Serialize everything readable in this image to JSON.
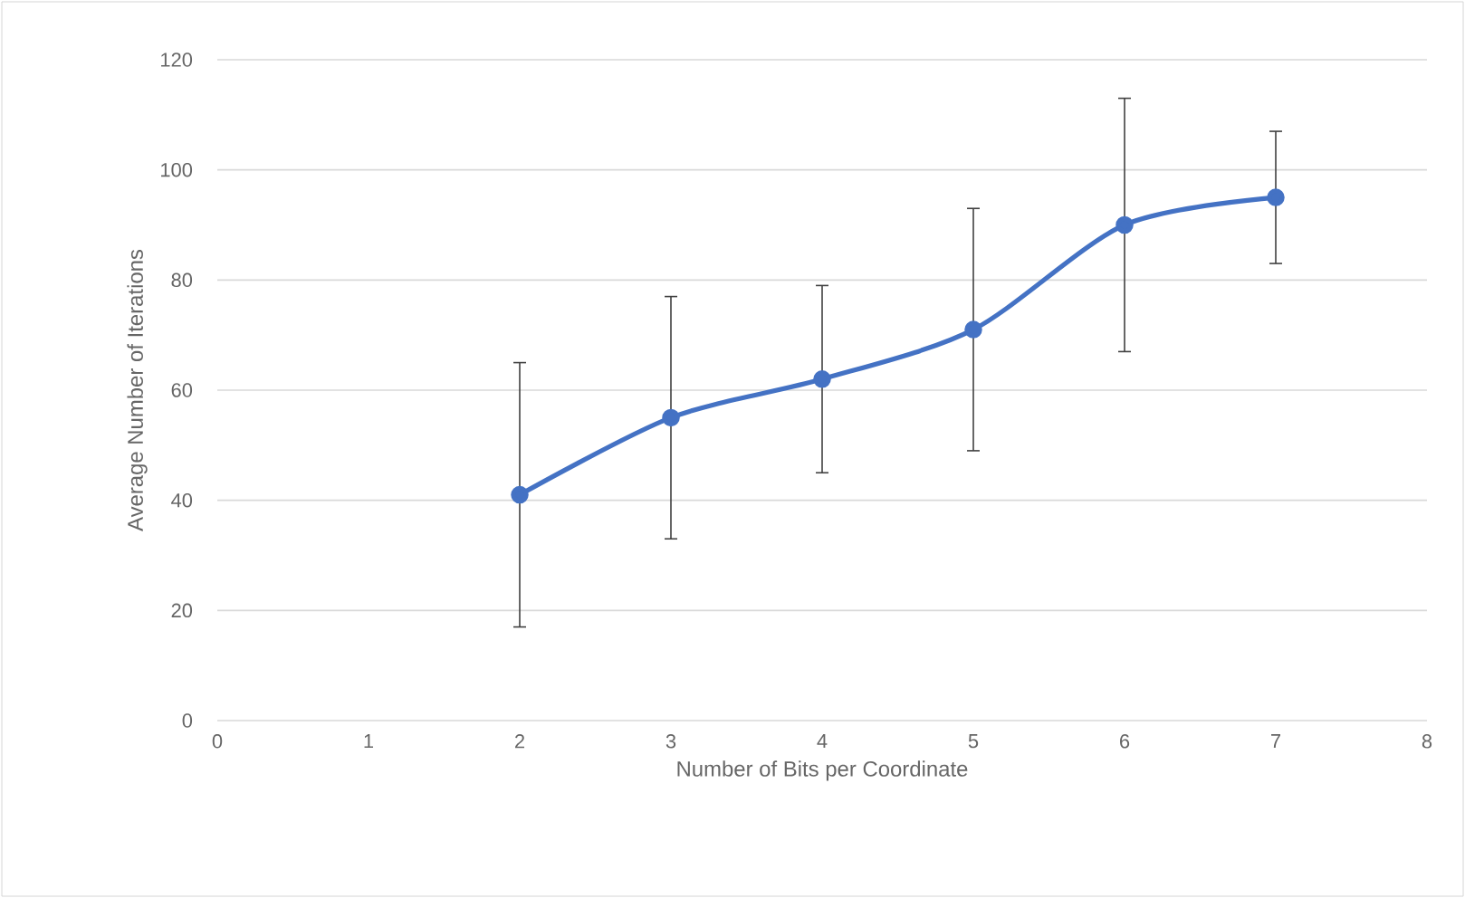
{
  "chart_data": {
    "type": "line",
    "xlabel": "Number of Bits per Coordinate",
    "ylabel": "Average Number of Iterations",
    "x": [
      2,
      3,
      4,
      5,
      6,
      7
    ],
    "values": [
      41,
      55,
      62,
      71,
      90,
      95
    ],
    "errors": [
      24,
      22,
      17,
      22,
      23,
      12
    ],
    "color": "#4472c4",
    "marker": "circle",
    "xlim": [
      0,
      8
    ],
    "xticks": [
      0,
      1,
      2,
      3,
      4,
      5,
      6,
      7,
      8
    ],
    "ylim": [
      0,
      120
    ],
    "yticks": [
      0,
      20,
      40,
      60,
      80,
      100,
      120
    ],
    "grid": "y"
  }
}
